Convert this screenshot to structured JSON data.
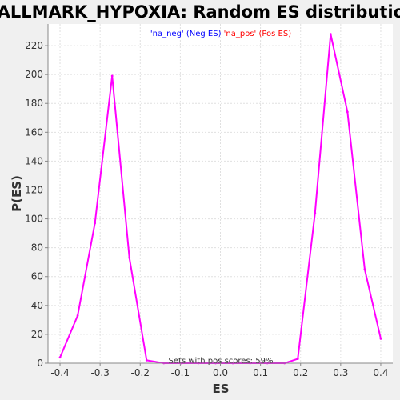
{
  "chart_data": {
    "type": "line",
    "title": "HALLMARK_HYPOXIA: Random ES distribution",
    "xlabel": "ES",
    "ylabel": "P(ES)",
    "xlim": [
      -0.43,
      0.43
    ],
    "ylim": [
      0,
      235
    ],
    "x_ticks": [
      -0.4,
      -0.3,
      -0.2,
      -0.1,
      0.0,
      0.1,
      0.2,
      0.3,
      0.4
    ],
    "x_tick_labels": [
      "-0.4",
      "-0.3",
      "-0.2",
      "-0.1",
      "0.0",
      "0.1",
      "0.2",
      "0.3",
      "0.4"
    ],
    "y_ticks": [
      0,
      20,
      40,
      60,
      80,
      100,
      120,
      140,
      160,
      180,
      200,
      220
    ],
    "y_tick_labels": [
      "0",
      "20",
      "40",
      "60",
      "80",
      "100",
      "120",
      "140",
      "160",
      "180",
      "200",
      "220"
    ],
    "grid": true,
    "legend": {
      "placement": "top-center",
      "entries": [
        {
          "label": "'na_neg' (Neg ES)",
          "color": "#0000ff"
        },
        {
          "label": "'na_pos' (Pos ES)",
          "color": "#ff0000"
        }
      ]
    },
    "annotation": "Sets with pos scores: 59%",
    "series": [
      {
        "color": "#ff00ff",
        "x": [
          -0.4,
          -0.356,
          -0.313,
          -0.27,
          -0.227,
          -0.184,
          -0.141,
          -0.098,
          -0.055,
          -0.012,
          0.031,
          0.074,
          0.117,
          0.16,
          0.193,
          0.236,
          0.275,
          0.317,
          0.36,
          0.4
        ],
        "values": [
          4,
          33,
          97,
          199,
          73,
          2,
          0,
          0,
          0,
          0,
          0,
          0,
          0,
          0,
          3,
          104,
          228,
          174,
          65,
          17
        ]
      }
    ]
  }
}
